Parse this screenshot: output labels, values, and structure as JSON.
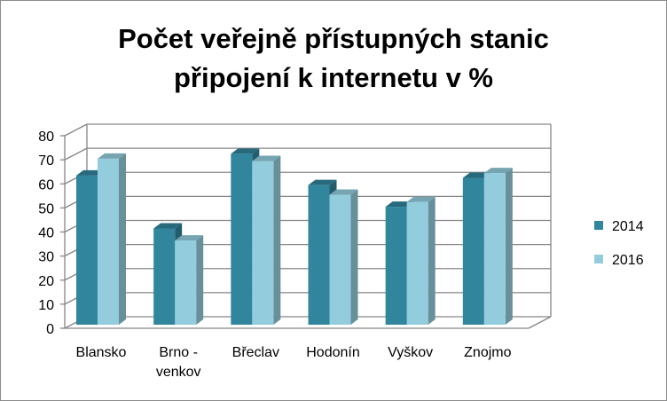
{
  "chart_data": {
    "type": "bar",
    "title_lines": [
      "Počet veřejně přístupných stanic",
      "připojení k internetu v %"
    ],
    "categories": [
      [
        "Blansko"
      ],
      [
        "Brno -",
        "venkov"
      ],
      [
        "Břeclav"
      ],
      [
        "Hodonín"
      ],
      [
        "Vyškov"
      ],
      [
        "Znojmo"
      ]
    ],
    "series": [
      {
        "name": "2014",
        "values": [
          62,
          40,
          71,
          58,
          49,
          61
        ],
        "color": "#31859c"
      },
      {
        "name": "2016",
        "values": [
          69,
          35,
          68,
          54,
          51,
          63
        ],
        "color": "#93cddd"
      }
    ],
    "y_ticks": [
      "0",
      "10",
      "20",
      "30",
      "40",
      "50",
      "60",
      "70",
      "80"
    ],
    "ylim": [
      0,
      80
    ],
    "grid": true,
    "legend_position": "right",
    "style": "3d-clustered-column"
  }
}
